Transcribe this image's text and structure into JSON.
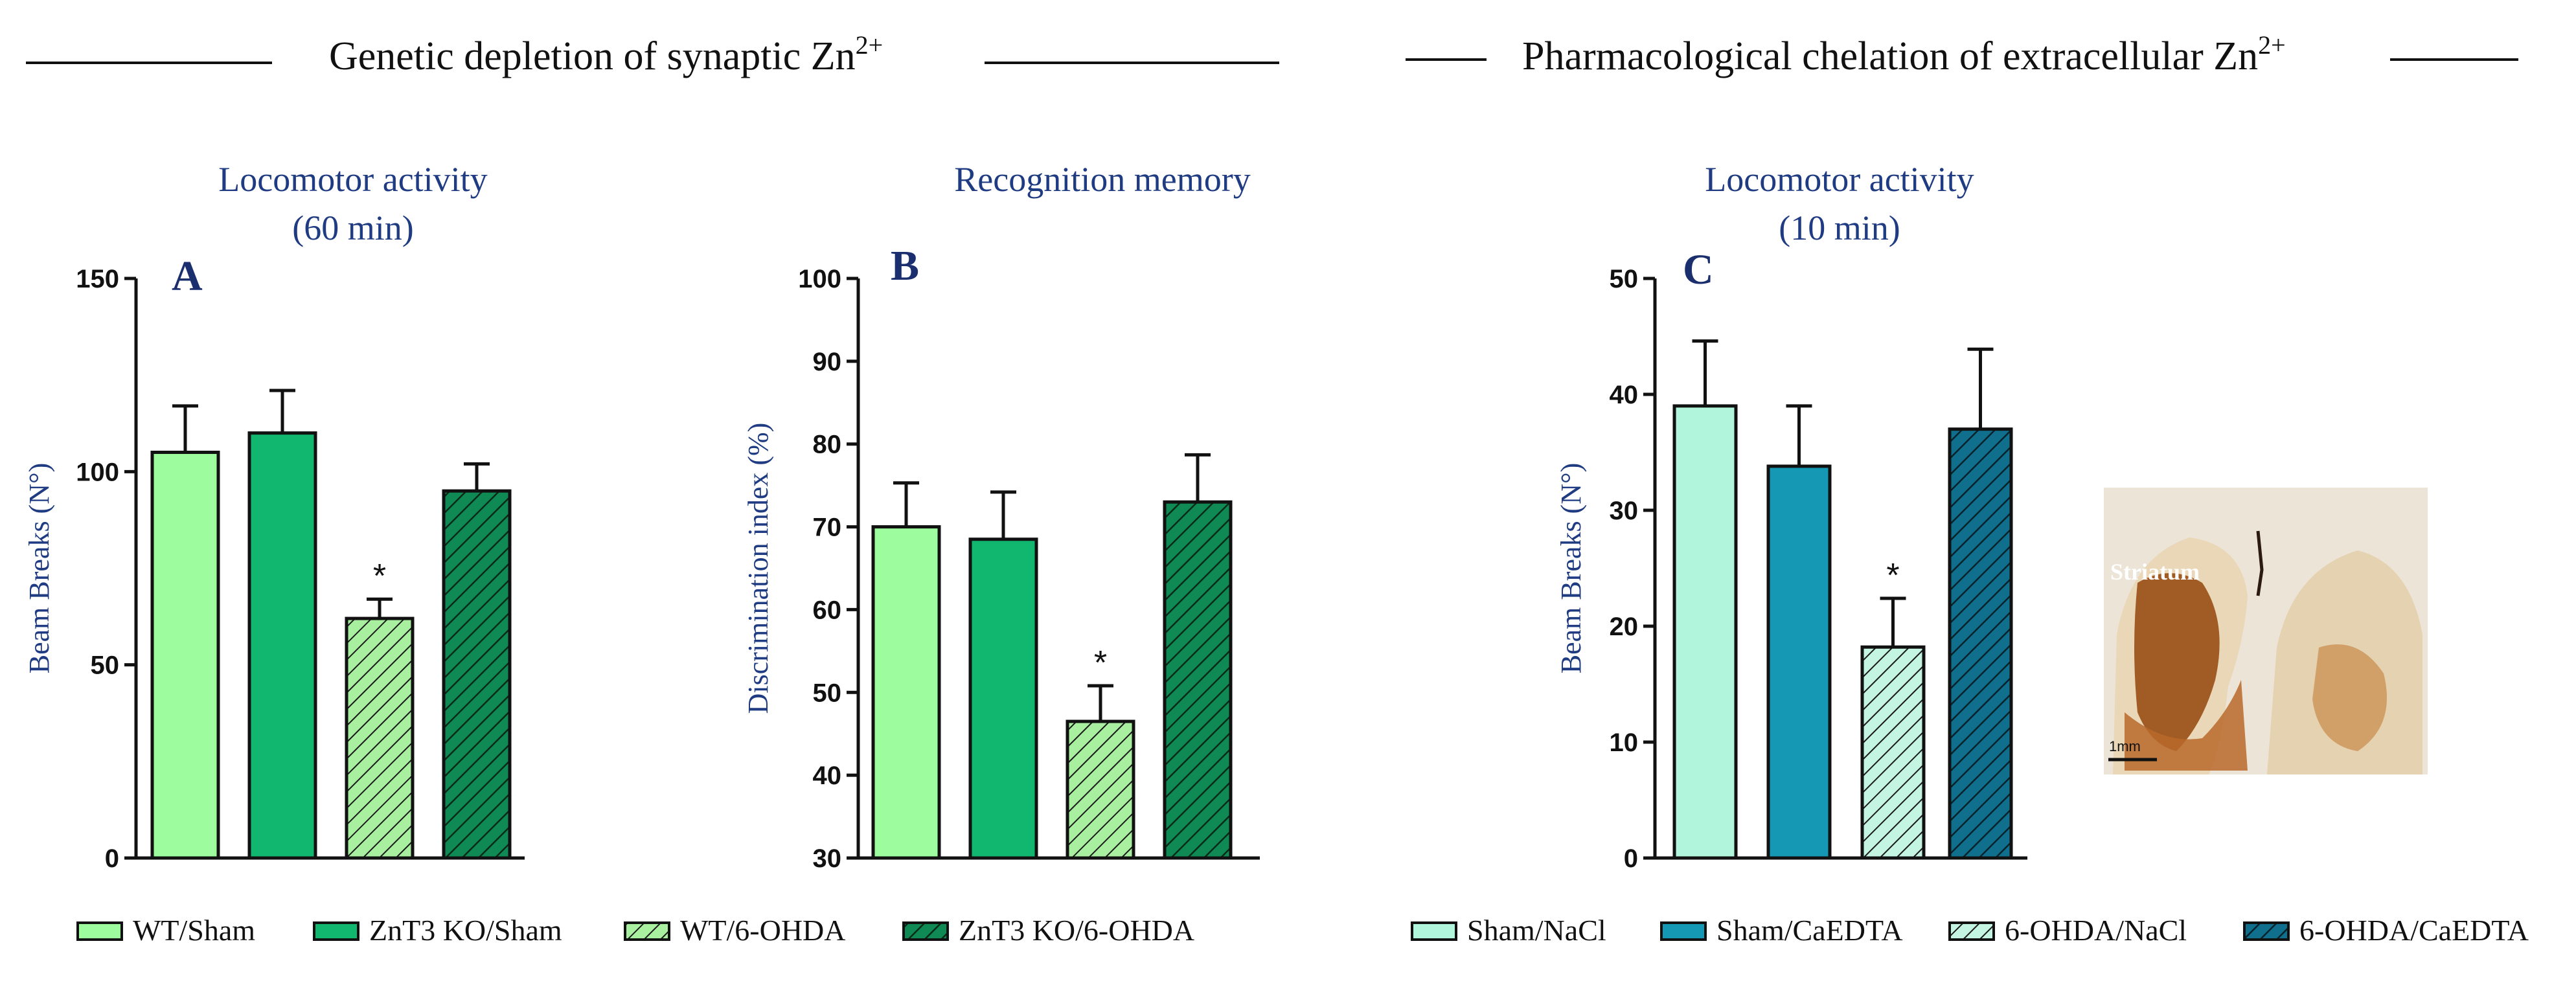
{
  "sections": {
    "left": "Genetic depletion of synaptic Zn",
    "right": "Pharmacological chelation of extracellular Zn",
    "sup": "2+"
  },
  "colors": {
    "title": "#1f3b82",
    "wt_sham": "#9dfc9d",
    "znt3_sham": "#12b76f",
    "wt_ohda": "#a8f0a0",
    "znt3_ohda": "#0f8a55",
    "sham_nacl": "#b0f5dc",
    "sham_caedta": "#1498b4",
    "ohda_nacl": "#c4f4e2",
    "ohda_caedta": "#0f6f8c"
  },
  "legend_left": [
    "WT/Sham",
    "ZnT3 KO/Sham",
    "WT/6-OHDA",
    "ZnT3 KO/6-OHDA"
  ],
  "legend_right": [
    "Sham/NaCl",
    "Sham/CaEDTA",
    "6-OHDA/NaCl",
    "6-OHDA/CaEDTA"
  ],
  "inset": {
    "region_label": "Striatum",
    "scale_label": "1mm"
  },
  "chart_data": [
    {
      "id": "A",
      "type": "bar",
      "panel_label": "A",
      "title": [
        "Locomotor activity",
        "(60 min)"
      ],
      "ylabel": "Beam Breaks (N°)",
      "ylim": [
        0,
        150
      ],
      "yticks": [
        0,
        50,
        100,
        150
      ],
      "categories": [
        "WT/Sham",
        "ZnT3 KO/Sham",
        "WT/6-OHDA",
        "ZnT3 KO/6-OHDA"
      ],
      "values": [
        105,
        110,
        62,
        95
      ],
      "errors": [
        12,
        11,
        5,
        7
      ],
      "hatched": [
        false,
        false,
        true,
        true
      ],
      "significance": [
        null,
        null,
        "*",
        null
      ]
    },
    {
      "id": "B",
      "type": "bar",
      "panel_label": "B",
      "title": [
        "Recognition memory"
      ],
      "ylabel": "Discrimination index (%)",
      "ylim": [
        30,
        100
      ],
      "yticks": [
        30,
        40,
        50,
        60,
        70,
        80,
        90,
        100
      ],
      "categories": [
        "WT/Sham",
        "ZnT3 KO/Sham",
        "WT/6-OHDA",
        "ZnT3 KO/6-OHDA"
      ],
      "values": [
        70,
        68.5,
        46.5,
        73
      ],
      "errors": [
        5.3,
        5.7,
        4.3,
        5.7
      ],
      "hatched": [
        false,
        false,
        true,
        true
      ],
      "significance": [
        null,
        null,
        "*",
        null
      ]
    },
    {
      "id": "C",
      "type": "bar",
      "panel_label": "C",
      "title": [
        "Locomotor activity",
        "(10 min)"
      ],
      "ylabel": "Beam Breaks (N°)",
      "ylim": [
        0,
        50
      ],
      "yticks": [
        0,
        10,
        20,
        30,
        40,
        50
      ],
      "categories": [
        "Sham/NaCl",
        "Sham/CaEDTA",
        "6-OHDA/NaCl",
        "6-OHDA/CaEDTA"
      ],
      "values": [
        39,
        33.8,
        18.2,
        37
      ],
      "errors": [
        5.6,
        5.2,
        4.2,
        6.9
      ],
      "hatched": [
        false,
        false,
        true,
        true
      ],
      "significance": [
        null,
        null,
        "*",
        null
      ]
    }
  ]
}
